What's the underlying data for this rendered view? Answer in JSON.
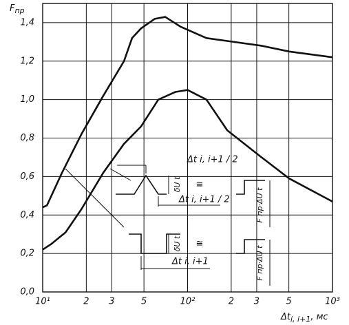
{
  "chart_data": {
    "type": "line",
    "y_label": {
      "main": "F",
      "sub": "пр"
    },
    "x_label": {
      "main": "Δt",
      "sub": "i, i+1",
      "unit": ", мс"
    },
    "log_x": true,
    "grid": true,
    "xlim": [
      10,
      1000
    ],
    "ylim": [
      0,
      1.5
    ],
    "xticks": [
      {
        "value": 10,
        "label": "10¹"
      },
      {
        "value": 20,
        "label": "2"
      },
      {
        "value": 30,
        "label": "3"
      },
      {
        "value": 50,
        "label": "5"
      },
      {
        "value": 100,
        "label": "10²"
      },
      {
        "value": 200,
        "label": "2"
      },
      {
        "value": 300,
        "label": "3"
      },
      {
        "value": 500,
        "label": "5"
      },
      {
        "value": 1000,
        "label": "10³"
      }
    ],
    "yticks": [
      {
        "value": 0,
        "label": "0,0"
      },
      {
        "value": 0.2,
        "label": "0,2"
      },
      {
        "value": 0.4,
        "label": "0,4"
      },
      {
        "value": 0.6,
        "label": "0,6"
      },
      {
        "value": 0.8,
        "label": "0,8"
      },
      {
        "value": 1.0,
        "label": "1,0"
      },
      {
        "value": 1.2,
        "label": "1,2"
      },
      {
        "value": 1.4,
        "label": "1,4"
      }
    ],
    "series": [
      {
        "color": "#111111",
        "x": [
          10,
          10.7,
          13.6,
          18.5,
          26.2,
          36.4,
          41.4,
          47.7,
          59.4,
          70.1,
          89,
          135,
          209,
          324,
          502,
          1000
        ],
        "values": [
          0.44,
          0.45,
          0.62,
          0.82,
          1.02,
          1.2,
          1.32,
          1.37,
          1.42,
          1.43,
          1.38,
          1.32,
          1.3,
          1.28,
          1.25,
          1.22
        ]
      },
      {
        "color": "#111111",
        "x": [
          10,
          11.5,
          14.4,
          18.5,
          26.2,
          36.4,
          47.7,
          62.8,
          82.6,
          100,
          135,
          188,
          324,
          502,
          1000
        ],
        "values": [
          0.22,
          0.25,
          0.31,
          0.43,
          0.62,
          0.77,
          0.86,
          1.0,
          1.04,
          1.05,
          1.0,
          0.84,
          0.7,
          0.59,
          0.47
        ]
      }
    ],
    "annotations": [
      "Δt i, i+1 / 2",
      "Δt i, i+1 / 2",
      "δU t",
      "≅",
      "F пр·ΔU t",
      "δU t",
      "≅",
      "F пр·ΔU t",
      "Δt i, i+1"
    ]
  }
}
